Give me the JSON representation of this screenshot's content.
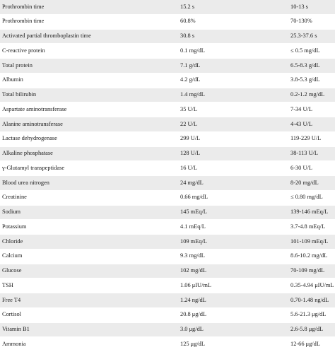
{
  "table": {
    "rows": [
      [
        "Prothrombin time",
        "15.2 s",
        "10-13 s"
      ],
      [
        "Prothrombin time",
        "60.8%",
        "70-130%"
      ],
      [
        "Activated partial thromboplastin time",
        "30.8 s",
        "25.3-37.6 s"
      ],
      [
        "C-reactive protein",
        "0.1 mg/dL",
        "≤ 0.5 mg/dL"
      ],
      [
        "Total protein",
        "7.1 g/dL",
        "6.5-8.3 g/dL"
      ],
      [
        "Albumin",
        "4.2 g/dL",
        "3.8-5.3 g/dL"
      ],
      [
        "Total bilirubin",
        "1.4 mg/dL",
        "0.2-1.2 mg/dL"
      ],
      [
        "Aspartate aminotransferase",
        "35 U/L",
        "7-34 U/L"
      ],
      [
        "Alanine aminotransferase",
        "22 U/L",
        "4-43 U/L"
      ],
      [
        "Lactase dehydrogenase",
        "299 U/L",
        "119-229 U/L"
      ],
      [
        "Alkaline phosphatase",
        "128 U/L",
        "38-113 U/L"
      ],
      [
        "γ-Glutamyl transpeptidase",
        "16 U/L",
        "6-30 U/L"
      ],
      [
        "Blood urea nitrogen",
        "24 mg/dL",
        "8-20 mg/dL"
      ],
      [
        "Creatinine",
        "0.66 mg/dL",
        "≤ 0.80 mg/dL"
      ],
      [
        "Sodium",
        "145 mEq/L",
        "139-146 mEq/L"
      ],
      [
        "Potassium",
        "4.1 mEq/L",
        "3.7-4.8 mEq/L"
      ],
      [
        "Chloride",
        "109 mEq/L",
        "101-109 mEq/L"
      ],
      [
        "Calcium",
        "9.3 mg/dL",
        "8.6-10.2 mg/dL"
      ],
      [
        "Glucose",
        "102 mg/dL",
        "70-109 mg/dL"
      ],
      [
        "TSH",
        "1.06 μIU/mL",
        "0.35-4.94 μIU/mL"
      ],
      [
        "Free T4",
        "1.24 ng/dL",
        "0.70-1.48 ng/dL"
      ],
      [
        "Cortisol",
        "20.8 μg/dL",
        "5.6-21.3 μg/dL"
      ],
      [
        "Vitamin B1",
        "3.0 μg/dL",
        "2.6-5.8 μg/dL"
      ],
      [
        "Ammonia",
        "125 μg/dL",
        "12-66 μg/dL"
      ]
    ]
  }
}
